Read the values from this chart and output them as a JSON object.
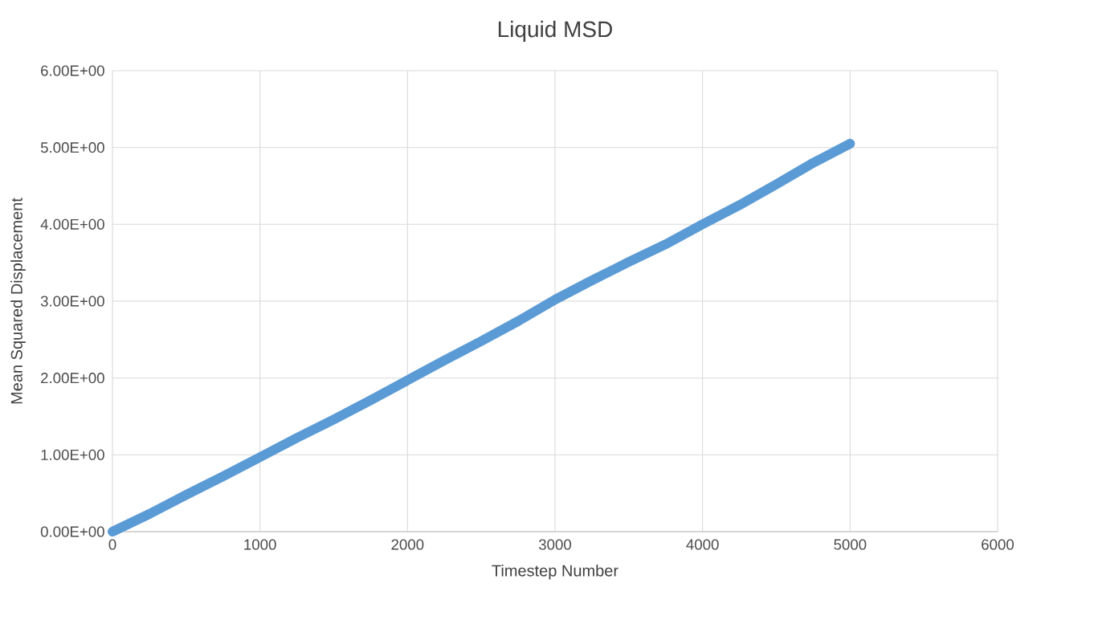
{
  "chart_data": {
    "type": "line",
    "title": "Liquid MSD",
    "xlabel": "Timestep Number",
    "ylabel": "Mean Squared Displacement",
    "series": [
      {
        "color": "#5b9bd5",
        "x": [
          0,
          250,
          500,
          750,
          1000,
          1250,
          1500,
          1750,
          2000,
          2250,
          2500,
          2750,
          3000,
          3250,
          3500,
          3750,
          4000,
          4250,
          4500,
          4750,
          5000
        ],
        "values": [
          0.0,
          0.23,
          0.48,
          0.72,
          0.97,
          1.22,
          1.46,
          1.71,
          1.97,
          2.23,
          2.48,
          2.74,
          3.02,
          3.27,
          3.51,
          3.74,
          4.0,
          4.25,
          4.52,
          4.8,
          5.05
        ]
      }
    ],
    "xlim": [
      0,
      6000
    ],
    "ylim": [
      0,
      6
    ],
    "xticks": [
      0,
      1000,
      2000,
      3000,
      4000,
      5000,
      6000
    ],
    "yticks": [
      {
        "value": 0,
        "label": "0.00E+00"
      },
      {
        "value": 1,
        "label": "1.00E+00"
      },
      {
        "value": 2,
        "label": "2.00E+00"
      },
      {
        "value": 3,
        "label": "3.00E+00"
      },
      {
        "value": 4,
        "label": "4.00E+00"
      },
      {
        "value": 5,
        "label": "5.00E+00"
      },
      {
        "value": 6,
        "label": "6.00E+00"
      }
    ],
    "grid": true,
    "marker": "none",
    "line_style": "solid"
  }
}
